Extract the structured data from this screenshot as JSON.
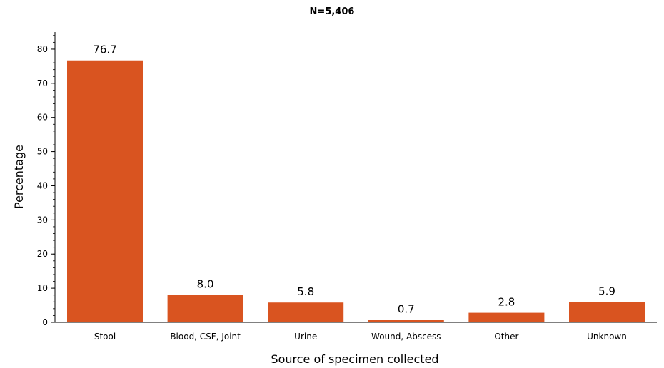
{
  "chart_data": {
    "type": "bar",
    "title": "N=5,406",
    "xlabel": "Source of specimen collected",
    "ylabel": "Percentage",
    "categories": [
      "Stool",
      "Blood, CSF, Joint",
      "Urine",
      "Wound, Abscess",
      "Other",
      "Unknown"
    ],
    "values": [
      76.7,
      8.0,
      5.8,
      0.7,
      2.8,
      5.9
    ],
    "data_labels": [
      "76.7",
      "8.0",
      "5.8",
      "0.7",
      "2.8",
      "5.9"
    ],
    "ylim": [
      0,
      85
    ],
    "yticks": [
      0,
      10,
      20,
      30,
      40,
      50,
      60,
      70,
      80
    ],
    "ytick_labels": [
      "0",
      "10",
      "20",
      "30",
      "40",
      "50",
      "60",
      "70",
      "80"
    ],
    "grid": false,
    "legend": "none",
    "bar_color": "#d95420"
  }
}
